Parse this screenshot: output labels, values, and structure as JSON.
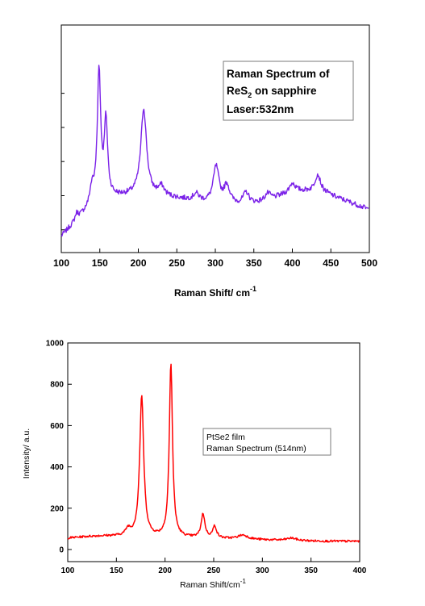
{
  "chart_data": [
    {
      "type": "line",
      "xlabel": "Raman Shift/ cm",
      "xlabel_sup": "-1",
      "ylabel": "",
      "xlim": [
        100,
        500
      ],
      "ylim": [
        0,
        1
      ],
      "y_ticks_labeled": false,
      "x_ticks": [
        100,
        150,
        200,
        250,
        300,
        350,
        400,
        450,
        500
      ],
      "legend_lines": [
        "Raman Spectrum of",
        "ReS",
        "2",
        " on sapphire",
        "Laser:532nm"
      ],
      "legend_position": "top-right",
      "line_color": "#7b22e8",
      "peaks": [
        [
          120,
          0.03
        ],
        [
          139,
          0.06
        ],
        [
          149,
          0.56
        ],
        [
          158,
          0.33
        ],
        [
          207,
          0.38
        ],
        [
          230,
          0.04
        ],
        [
          275,
          0.03
        ],
        [
          301,
          0.16
        ],
        [
          315,
          0.08
        ],
        [
          340,
          0.05
        ],
        [
          368,
          0.03
        ],
        [
          400,
          0.04
        ],
        [
          433,
          0.08
        ]
      ],
      "series": [
        {
          "x": [
            100,
            110,
            120,
            130,
            140,
            150,
            160,
            170,
            180,
            190,
            200,
            210,
            220,
            230,
            240,
            250,
            260,
            270,
            280,
            290,
            300,
            310,
            320,
            330,
            340,
            350,
            360,
            370,
            380,
            390,
            400,
            410,
            420,
            430,
            440,
            450,
            460,
            470,
            480,
            490,
            500
          ],
          "y": [
            0.07,
            0.1,
            0.16,
            0.24,
            0.32,
            0.96,
            0.6,
            0.25,
            0.25,
            0.24,
            0.38,
            0.65,
            0.23,
            0.27,
            0.21,
            0.21,
            0.23,
            0.26,
            0.24,
            0.23,
            0.38,
            0.33,
            0.27,
            0.27,
            0.26,
            0.2,
            0.22,
            0.23,
            0.24,
            0.25,
            0.27,
            0.28,
            0.3,
            0.33,
            0.27,
            0.24,
            0.18,
            0.19,
            0.17,
            0.18,
            0.18
          ]
        }
      ]
    },
    {
      "type": "line",
      "xlabel": "Raman Shift/cm",
      "xlabel_sup": "-1",
      "ylabel": "Intensity/ a.u.",
      "xlim": [
        100,
        400
      ],
      "ylim": [
        0,
        1000
      ],
      "x_ticks": [
        100,
        150,
        200,
        250,
        300,
        350,
        400
      ],
      "y_ticks": [
        0,
        200,
        400,
        600,
        800,
        1000
      ],
      "legend_lines": [
        "PtSe2 film",
        "Raman Spectrum (514nm)"
      ],
      "legend_position": "center-right",
      "line_color": "#ff0000",
      "baseline": 48,
      "peaks": [
        [
          162,
          32,
          3
        ],
        [
          176,
          680,
          2.5
        ],
        [
          206,
          840,
          2.0
        ],
        [
          239,
          115,
          2.3
        ],
        [
          251,
          58,
          2.3
        ],
        [
          280,
          20,
          6
        ],
        [
          330,
          12,
          6
        ]
      ],
      "series": [
        {
          "x": [
            100,
            120,
            140,
            160,
            165,
            170,
            175,
            178,
            180,
            185,
            190,
            200,
            204,
            206,
            208,
            212,
            220,
            230,
            239,
            245,
            251,
            260,
            280,
            300,
            320,
            350,
            380,
            400
          ],
          "y": [
            55,
            62,
            68,
            90,
            130,
            300,
            735,
            560,
            250,
            95,
            70,
            110,
            700,
            890,
            620,
            120,
            60,
            75,
            170,
            70,
            120,
            70,
            75,
            65,
            62,
            58,
            52,
            48
          ]
        }
      ]
    }
  ]
}
